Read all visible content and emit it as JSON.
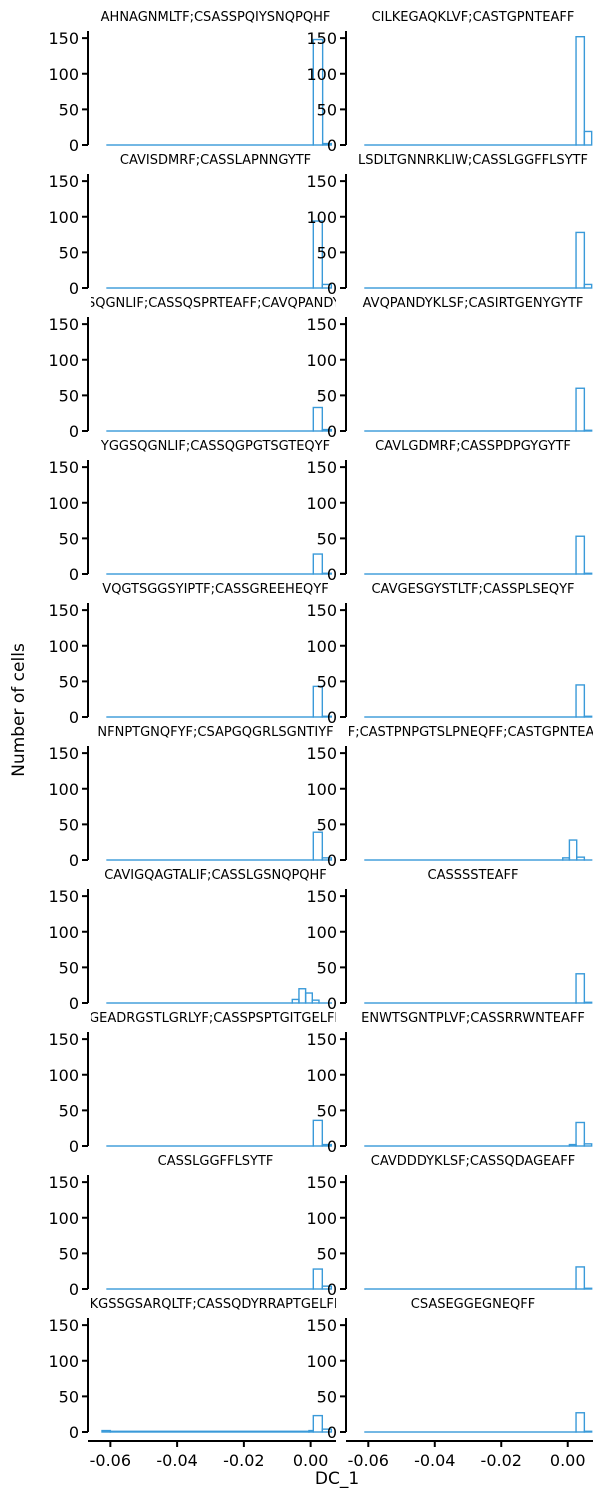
{
  "figure": {
    "ylabel": "Number of cells",
    "xlabel": "DC_1",
    "series_color": "#3a9ad9",
    "yticks": [
      "0",
      "50",
      "100",
      "150"
    ],
    "xticks": [
      "-0.06",
      "-0.04",
      "-0.02",
      "0.00"
    ]
  },
  "chart_data": [
    {
      "type": "bar",
      "title": "AHNAGNMLTF;CSASSPQIYSNQPQHF",
      "xlabel": "",
      "ylabel": "Number of cells",
      "xlim": [
        -0.064,
        0.007
      ],
      "ylim": [
        0,
        160
      ],
      "bins": [
        {
          "x0": -0.061,
          "x1": 0.0008,
          "count": 0
        },
        {
          "x0": 0.0008,
          "x1": 0.0036,
          "count": 148
        },
        {
          "x0": 0.0036,
          "x1": 0.0062,
          "count": 2
        }
      ]
    },
    {
      "type": "bar",
      "title": "CILKEGAQKLVF;CASTGPNTEAFF",
      "xlabel": "",
      "ylabel": "",
      "xlim": [
        -0.064,
        0.007
      ],
      "ylim": [
        0,
        160
      ],
      "bins": [
        {
          "x0": -0.061,
          "x1": 0.0025,
          "count": 0
        },
        {
          "x0": 0.0025,
          "x1": 0.005,
          "count": 152
        },
        {
          "x0": 0.005,
          "x1": 0.0072,
          "count": 19
        }
      ]
    },
    {
      "type": "bar",
      "title": "CAVISDMRF;CASSLAPNNGYTF",
      "xlabel": "",
      "ylabel": "Number of cells",
      "xlim": [
        -0.064,
        0.007
      ],
      "ylim": [
        0,
        160
      ],
      "bins": [
        {
          "x0": -0.061,
          "x1": 0.0008,
          "count": 0
        },
        {
          "x0": 0.0008,
          "x1": 0.0035,
          "count": 94
        },
        {
          "x0": 0.0035,
          "x1": 0.0062,
          "count": 5
        }
      ]
    },
    {
      "type": "bar",
      "title": "LSDLTGNNRKLIW;CASSLGGFFLSYTF",
      "xlabel": "",
      "ylabel": "",
      "xlim": [
        -0.064,
        0.007
      ],
      "ylim": [
        0,
        160
      ],
      "bins": [
        {
          "x0": -0.061,
          "x1": 0.0025,
          "count": 0
        },
        {
          "x0": 0.0025,
          "x1": 0.005,
          "count": 78
        },
        {
          "x0": 0.005,
          "x1": 0.0072,
          "count": 5
        }
      ]
    },
    {
      "type": "bar",
      "title": "YGGSQGNLIF;CASSQSPRTEAFF;CAVQPANDYKLSF",
      "xlabel": "",
      "ylabel": "Number of cells",
      "xlim": [
        -0.064,
        0.007
      ],
      "ylim": [
        0,
        160
      ],
      "bins": [
        {
          "x0": -0.061,
          "x1": 0.0008,
          "count": 0
        },
        {
          "x0": 0.0008,
          "x1": 0.0035,
          "count": 33
        },
        {
          "x0": 0.0035,
          "x1": 0.0062,
          "count": 2
        }
      ]
    },
    {
      "type": "bar",
      "title": "AVQPANDYKLSF;CASIRTGENYGYTF",
      "xlabel": "",
      "ylabel": "",
      "xlim": [
        -0.064,
        0.007
      ],
      "ylim": [
        0,
        160
      ],
      "bins": [
        {
          "x0": -0.061,
          "x1": 0.0025,
          "count": 0
        },
        {
          "x0": 0.0025,
          "x1": 0.005,
          "count": 60
        },
        {
          "x0": 0.005,
          "x1": 0.0072,
          "count": 1
        }
      ]
    },
    {
      "type": "bar",
      "title": "YGGSQGNLIF;CASSQGPGTSGTEQYF",
      "xlabel": "",
      "ylabel": "Number of cells",
      "xlim": [
        -0.064,
        0.007
      ],
      "ylim": [
        0,
        160
      ],
      "bins": [
        {
          "x0": -0.061,
          "x1": 0.0008,
          "count": 0
        },
        {
          "x0": 0.0008,
          "x1": 0.0035,
          "count": 28
        },
        {
          "x0": 0.0035,
          "x1": 0.0062,
          "count": 1
        }
      ]
    },
    {
      "type": "bar",
      "title": "CAVLGDMRF;CASSPDPGYGYTF",
      "xlabel": "",
      "ylabel": "",
      "xlim": [
        -0.064,
        0.007
      ],
      "ylim": [
        0,
        160
      ],
      "bins": [
        {
          "x0": -0.061,
          "x1": 0.0025,
          "count": 0
        },
        {
          "x0": 0.0025,
          "x1": 0.005,
          "count": 53
        },
        {
          "x0": 0.005,
          "x1": 0.0072,
          "count": 1
        }
      ]
    },
    {
      "type": "bar",
      "title": "VQGTSGGSYIPTF;CASSGREEHEQYF",
      "xlabel": "",
      "ylabel": "Number of cells",
      "xlim": [
        -0.064,
        0.007
      ],
      "ylim": [
        0,
        160
      ],
      "bins": [
        {
          "x0": -0.061,
          "x1": 0.0008,
          "count": 0
        },
        {
          "x0": 0.0008,
          "x1": 0.0035,
          "count": 43
        },
        {
          "x0": 0.0035,
          "x1": 0.0062,
          "count": 1
        }
      ]
    },
    {
      "type": "bar",
      "title": "CAVGESGYSTLTF;CASSPLSEQYF",
      "xlabel": "",
      "ylabel": "",
      "xlim": [
        -0.064,
        0.007
      ],
      "ylim": [
        0,
        160
      ],
      "bins": [
        {
          "x0": -0.061,
          "x1": 0.0025,
          "count": 0
        },
        {
          "x0": 0.0025,
          "x1": 0.005,
          "count": 45
        },
        {
          "x0": 0.005,
          "x1": 0.0072,
          "count": 1
        }
      ]
    },
    {
      "type": "bar",
      "title": "NFNPTGNQFYF;CSAPGQGRLSGNTIYF",
      "xlabel": "",
      "ylabel": "Number of cells",
      "xlim": [
        -0.064,
        0.007
      ],
      "ylim": [
        0,
        160
      ],
      "bins": [
        {
          "x0": -0.061,
          "x1": 0.0008,
          "count": 0
        },
        {
          "x0": 0.0008,
          "x1": 0.0035,
          "count": 39
        },
        {
          "x0": 0.0035,
          "x1": 0.0062,
          "count": 3
        }
      ]
    },
    {
      "type": "bar",
      "title": "LIF;CASTPNPGTSLPNEQFF;CASTGPNTEAFF",
      "xlabel": "",
      "ylabel": "",
      "xlim": [
        -0.064,
        0.007
      ],
      "ylim": [
        0,
        160
      ],
      "bins": [
        {
          "x0": -0.061,
          "x1": -0.0015,
          "count": 0
        },
        {
          "x0": -0.0015,
          "x1": 0.0005,
          "count": 3
        },
        {
          "x0": 0.0005,
          "x1": 0.0027,
          "count": 28
        },
        {
          "x0": 0.0027,
          "x1": 0.005,
          "count": 4
        },
        {
          "x0": 0.005,
          "x1": 0.0072,
          "count": 0
        }
      ]
    },
    {
      "type": "bar",
      "title": "CAVIGQAGTALIF;CASSLGSNQPQHF",
      "xlabel": "",
      "ylabel": "Number of cells",
      "xlim": [
        -0.064,
        0.007
      ],
      "ylim": [
        0,
        160
      ],
      "bins": [
        {
          "x0": -0.061,
          "x1": -0.0055,
          "count": 0
        },
        {
          "x0": -0.0055,
          "x1": -0.0035,
          "count": 5
        },
        {
          "x0": -0.0035,
          "x1": -0.0015,
          "count": 20
        },
        {
          "x0": -0.0015,
          "x1": 0.0005,
          "count": 14
        },
        {
          "x0": 0.0005,
          "x1": 0.0025,
          "count": 4
        },
        {
          "x0": 0.0025,
          "x1": 0.0062,
          "count": 0
        }
      ]
    },
    {
      "type": "bar",
      "title": "CASSSSTEAFF",
      "xlabel": "",
      "ylabel": "",
      "xlim": [
        -0.064,
        0.007
      ],
      "ylim": [
        0,
        160
      ],
      "bins": [
        {
          "x0": -0.061,
          "x1": 0.0025,
          "count": 0
        },
        {
          "x0": 0.0025,
          "x1": 0.005,
          "count": 41
        },
        {
          "x0": 0.005,
          "x1": 0.0072,
          "count": 1
        }
      ]
    },
    {
      "type": "bar",
      "title": "GEADRGSTLGRLYF;CASSPSPTGITGELFF",
      "xlabel": "",
      "ylabel": "Number of cells",
      "xlim": [
        -0.064,
        0.007
      ],
      "ylim": [
        0,
        160
      ],
      "bins": [
        {
          "x0": -0.061,
          "x1": 0.0008,
          "count": 0
        },
        {
          "x0": 0.0008,
          "x1": 0.0035,
          "count": 36
        },
        {
          "x0": 0.0035,
          "x1": 0.0062,
          "count": 2
        }
      ]
    },
    {
      "type": "bar",
      "title": "ENWTSGNTPLVF;CASSRRWNTEAFF",
      "xlabel": "",
      "ylabel": "",
      "xlim": [
        -0.064,
        0.007
      ],
      "ylim": [
        0,
        160
      ],
      "bins": [
        {
          "x0": -0.061,
          "x1": 0.0005,
          "count": 0
        },
        {
          "x0": 0.0005,
          "x1": 0.0025,
          "count": 2
        },
        {
          "x0": 0.0025,
          "x1": 0.005,
          "count": 33
        },
        {
          "x0": 0.005,
          "x1": 0.0072,
          "count": 3
        }
      ]
    },
    {
      "type": "bar",
      "title": "CASSLGGFFLSYTF",
      "xlabel": "",
      "ylabel": "Number of cells",
      "xlim": [
        -0.064,
        0.007
      ],
      "ylim": [
        0,
        160
      ],
      "bins": [
        {
          "x0": -0.061,
          "x1": 0.0008,
          "count": 0
        },
        {
          "x0": 0.0008,
          "x1": 0.0035,
          "count": 28
        },
        {
          "x0": 0.0035,
          "x1": 0.0062,
          "count": 4
        }
      ]
    },
    {
      "type": "bar",
      "title": "CAVDDDYKLSF;CASSQDAGEAFF",
      "xlabel": "",
      "ylabel": "",
      "xlim": [
        -0.064,
        0.007
      ],
      "ylim": [
        0,
        160
      ],
      "bins": [
        {
          "x0": -0.061,
          "x1": 0.0025,
          "count": 0
        },
        {
          "x0": 0.0025,
          "x1": 0.005,
          "count": 31
        },
        {
          "x0": 0.005,
          "x1": 0.0072,
          "count": 1
        }
      ]
    },
    {
      "type": "bar",
      "title": "KGSSGSARQLTF;CASSQDYRRAPTGELFF",
      "xlabel": "-0.06 -0.04 -0.02 0.00",
      "ylabel": "Number of cells",
      "xlim": [
        -0.064,
        0.007
      ],
      "ylim": [
        0,
        160
      ],
      "bins": [
        {
          "x0": -0.0625,
          "x1": -0.06,
          "count": 2
        },
        {
          "x0": -0.06,
          "x1": -0.0005,
          "count": 1
        },
        {
          "x0": -0.0005,
          "x1": 0.0008,
          "count": 2
        },
        {
          "x0": 0.0008,
          "x1": 0.0035,
          "count": 23
        },
        {
          "x0": 0.0035,
          "x1": 0.0062,
          "count": 4
        }
      ]
    },
    {
      "type": "bar",
      "title": "CSASEGGEGNEQFF",
      "xlabel": "-0.06 -0.04 -0.02 0.00",
      "ylabel": "",
      "xlim": [
        -0.064,
        0.007
      ],
      "ylim": [
        0,
        160
      ],
      "bins": [
        {
          "x0": -0.061,
          "x1": 0.0025,
          "count": 0
        },
        {
          "x0": 0.0025,
          "x1": 0.005,
          "count": 27
        },
        {
          "x0": 0.005,
          "x1": 0.0072,
          "count": 1
        }
      ]
    }
  ]
}
